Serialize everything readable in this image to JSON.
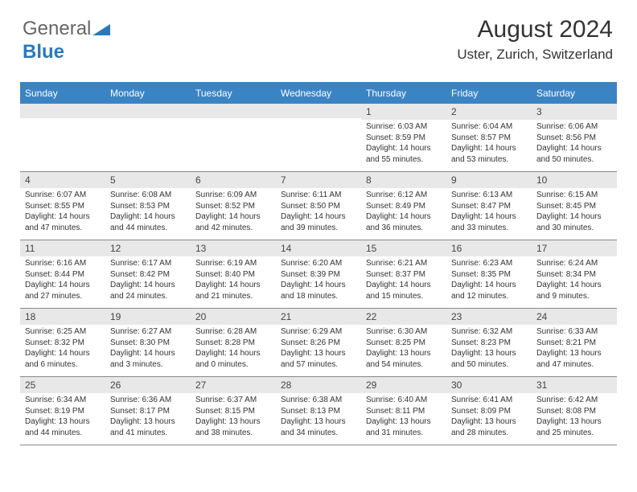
{
  "logo": {
    "part1": "General",
    "part2": "Blue"
  },
  "header": {
    "month_title": "August 2024",
    "location": "Uster, Zurich, Switzerland"
  },
  "colors": {
    "header_bg": "#3b84c4",
    "header_text": "#ffffff",
    "daynum_bg": "#e8e8e8",
    "text": "#333333",
    "border": "#888888"
  },
  "day_names": [
    "Sunday",
    "Monday",
    "Tuesday",
    "Wednesday",
    "Thursday",
    "Friday",
    "Saturday"
  ],
  "weeks": [
    [
      {
        "empty": true
      },
      {
        "empty": true
      },
      {
        "empty": true
      },
      {
        "empty": true
      },
      {
        "num": "1",
        "sunrise": "Sunrise: 6:03 AM",
        "sunset": "Sunset: 8:59 PM",
        "daylight": "Daylight: 14 hours and 55 minutes."
      },
      {
        "num": "2",
        "sunrise": "Sunrise: 6:04 AM",
        "sunset": "Sunset: 8:57 PM",
        "daylight": "Daylight: 14 hours and 53 minutes."
      },
      {
        "num": "3",
        "sunrise": "Sunrise: 6:06 AM",
        "sunset": "Sunset: 8:56 PM",
        "daylight": "Daylight: 14 hours and 50 minutes."
      }
    ],
    [
      {
        "num": "4",
        "sunrise": "Sunrise: 6:07 AM",
        "sunset": "Sunset: 8:55 PM",
        "daylight": "Daylight: 14 hours and 47 minutes."
      },
      {
        "num": "5",
        "sunrise": "Sunrise: 6:08 AM",
        "sunset": "Sunset: 8:53 PM",
        "daylight": "Daylight: 14 hours and 44 minutes."
      },
      {
        "num": "6",
        "sunrise": "Sunrise: 6:09 AM",
        "sunset": "Sunset: 8:52 PM",
        "daylight": "Daylight: 14 hours and 42 minutes."
      },
      {
        "num": "7",
        "sunrise": "Sunrise: 6:11 AM",
        "sunset": "Sunset: 8:50 PM",
        "daylight": "Daylight: 14 hours and 39 minutes."
      },
      {
        "num": "8",
        "sunrise": "Sunrise: 6:12 AM",
        "sunset": "Sunset: 8:49 PM",
        "daylight": "Daylight: 14 hours and 36 minutes."
      },
      {
        "num": "9",
        "sunrise": "Sunrise: 6:13 AM",
        "sunset": "Sunset: 8:47 PM",
        "daylight": "Daylight: 14 hours and 33 minutes."
      },
      {
        "num": "10",
        "sunrise": "Sunrise: 6:15 AM",
        "sunset": "Sunset: 8:45 PM",
        "daylight": "Daylight: 14 hours and 30 minutes."
      }
    ],
    [
      {
        "num": "11",
        "sunrise": "Sunrise: 6:16 AM",
        "sunset": "Sunset: 8:44 PM",
        "daylight": "Daylight: 14 hours and 27 minutes."
      },
      {
        "num": "12",
        "sunrise": "Sunrise: 6:17 AM",
        "sunset": "Sunset: 8:42 PM",
        "daylight": "Daylight: 14 hours and 24 minutes."
      },
      {
        "num": "13",
        "sunrise": "Sunrise: 6:19 AM",
        "sunset": "Sunset: 8:40 PM",
        "daylight": "Daylight: 14 hours and 21 minutes."
      },
      {
        "num": "14",
        "sunrise": "Sunrise: 6:20 AM",
        "sunset": "Sunset: 8:39 PM",
        "daylight": "Daylight: 14 hours and 18 minutes."
      },
      {
        "num": "15",
        "sunrise": "Sunrise: 6:21 AM",
        "sunset": "Sunset: 8:37 PM",
        "daylight": "Daylight: 14 hours and 15 minutes."
      },
      {
        "num": "16",
        "sunrise": "Sunrise: 6:23 AM",
        "sunset": "Sunset: 8:35 PM",
        "daylight": "Daylight: 14 hours and 12 minutes."
      },
      {
        "num": "17",
        "sunrise": "Sunrise: 6:24 AM",
        "sunset": "Sunset: 8:34 PM",
        "daylight": "Daylight: 14 hours and 9 minutes."
      }
    ],
    [
      {
        "num": "18",
        "sunrise": "Sunrise: 6:25 AM",
        "sunset": "Sunset: 8:32 PM",
        "daylight": "Daylight: 14 hours and 6 minutes."
      },
      {
        "num": "19",
        "sunrise": "Sunrise: 6:27 AM",
        "sunset": "Sunset: 8:30 PM",
        "daylight": "Daylight: 14 hours and 3 minutes."
      },
      {
        "num": "20",
        "sunrise": "Sunrise: 6:28 AM",
        "sunset": "Sunset: 8:28 PM",
        "daylight": "Daylight: 14 hours and 0 minutes."
      },
      {
        "num": "21",
        "sunrise": "Sunrise: 6:29 AM",
        "sunset": "Sunset: 8:26 PM",
        "daylight": "Daylight: 13 hours and 57 minutes."
      },
      {
        "num": "22",
        "sunrise": "Sunrise: 6:30 AM",
        "sunset": "Sunset: 8:25 PM",
        "daylight": "Daylight: 13 hours and 54 minutes."
      },
      {
        "num": "23",
        "sunrise": "Sunrise: 6:32 AM",
        "sunset": "Sunset: 8:23 PM",
        "daylight": "Daylight: 13 hours and 50 minutes."
      },
      {
        "num": "24",
        "sunrise": "Sunrise: 6:33 AM",
        "sunset": "Sunset: 8:21 PM",
        "daylight": "Daylight: 13 hours and 47 minutes."
      }
    ],
    [
      {
        "num": "25",
        "sunrise": "Sunrise: 6:34 AM",
        "sunset": "Sunset: 8:19 PM",
        "daylight": "Daylight: 13 hours and 44 minutes."
      },
      {
        "num": "26",
        "sunrise": "Sunrise: 6:36 AM",
        "sunset": "Sunset: 8:17 PM",
        "daylight": "Daylight: 13 hours and 41 minutes."
      },
      {
        "num": "27",
        "sunrise": "Sunrise: 6:37 AM",
        "sunset": "Sunset: 8:15 PM",
        "daylight": "Daylight: 13 hours and 38 minutes."
      },
      {
        "num": "28",
        "sunrise": "Sunrise: 6:38 AM",
        "sunset": "Sunset: 8:13 PM",
        "daylight": "Daylight: 13 hours and 34 minutes."
      },
      {
        "num": "29",
        "sunrise": "Sunrise: 6:40 AM",
        "sunset": "Sunset: 8:11 PM",
        "daylight": "Daylight: 13 hours and 31 minutes."
      },
      {
        "num": "30",
        "sunrise": "Sunrise: 6:41 AM",
        "sunset": "Sunset: 8:09 PM",
        "daylight": "Daylight: 13 hours and 28 minutes."
      },
      {
        "num": "31",
        "sunrise": "Sunrise: 6:42 AM",
        "sunset": "Sunset: 8:08 PM",
        "daylight": "Daylight: 13 hours and 25 minutes."
      }
    ]
  ]
}
